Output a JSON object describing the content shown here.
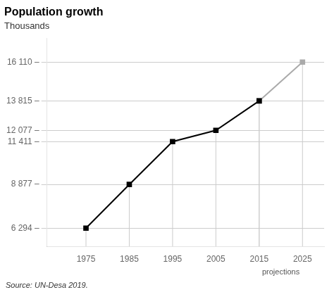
{
  "chart_data": {
    "type": "line",
    "title": "Population growth",
    "subtitle": "Thousands",
    "source": "Source: UN-Desa 2019.",
    "annotation": "projections",
    "series": [
      {
        "color": "#000000",
        "x": [
          1975,
          1985,
          1995,
          2005,
          2015
        ],
        "values": [
          6294,
          8877,
          11411,
          12077,
          13815
        ],
        "marker": "square",
        "line_style": "solid"
      },
      {
        "color": "#aaaaaa",
        "x": [
          2015,
          2025
        ],
        "values": [
          13815,
          16110
        ],
        "marker": "square",
        "line_style": "solid"
      }
    ],
    "xlim": [
      1966,
      2030
    ],
    "xticks": [
      1975,
      1985,
      1995,
      2005,
      2015,
      2025
    ],
    "ylim": [
      5200,
      17500
    ],
    "yticks": [
      {
        "value": 6294,
        "label": "6 294 –"
      },
      {
        "value": 8877,
        "label": "8 877 –"
      },
      {
        "value": 11411,
        "label": "11 411 –"
      },
      {
        "value": 12077,
        "label": "12 077 –"
      },
      {
        "value": 13815,
        "label": "13 815 –"
      },
      {
        "value": 16110,
        "label": "16 110 –"
      }
    ],
    "grid": "y",
    "legend": false
  }
}
